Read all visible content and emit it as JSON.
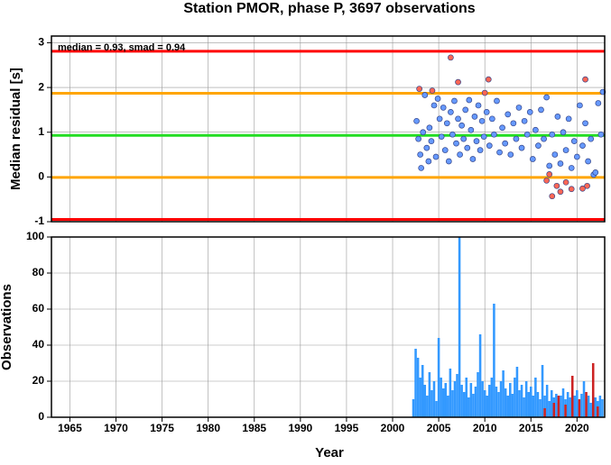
{
  "chart_data": [
    {
      "type": "scatter",
      "title": "Station PMOR, phase P, 3697 observations",
      "ylabel": "Median residual [s]",
      "annotation": "median = 0.93, smad = 0.94",
      "xlim": [
        1963,
        2023
      ],
      "ylim": [
        -1,
        3.15
      ],
      "yticks": [
        -1,
        0,
        1,
        2,
        3
      ],
      "grid": true,
      "hlines": [
        {
          "value": 2.81,
          "color": "#ff0000"
        },
        {
          "value": 1.87,
          "color": "#ffa500"
        },
        {
          "value": 0.93,
          "color": "#22dd22"
        },
        {
          "value": -0.01,
          "color": "#ffa500"
        },
        {
          "value": -0.95,
          "color": "#ff0000"
        }
      ],
      "series": [
        {
          "color": "#6699ff",
          "x": [
            2002.6,
            2002.8,
            2003.0,
            2003.1,
            2003.3,
            2003.5,
            2003.7,
            2003.9,
            2004.0,
            2004.2,
            2004.5,
            2004.7,
            2004.9,
            2005.1,
            2005.3,
            2005.5,
            2005.7,
            2005.9,
            2006.1,
            2006.3,
            2006.5,
            2006.7,
            2006.9,
            2007.1,
            2007.3,
            2007.5,
            2007.7,
            2007.9,
            2008.1,
            2008.3,
            2008.5,
            2008.7,
            2008.9,
            2009.1,
            2009.3,
            2009.5,
            2009.7,
            2009.9,
            2010.2,
            2010.5,
            2010.8,
            2011.0,
            2011.3,
            2011.6,
            2011.9,
            2012.2,
            2012.5,
            2012.8,
            2013.1,
            2013.4,
            2013.7,
            2014.0,
            2014.3,
            2014.6,
            2014.9,
            2015.2,
            2015.5,
            2015.8,
            2016.1,
            2016.4,
            2016.7,
            2017.0,
            2017.3,
            2017.6,
            2017.9,
            2018.2,
            2018.5,
            2018.8,
            2019.1,
            2019.4,
            2019.7,
            2020.0,
            2020.3,
            2020.6,
            2020.9,
            2021.2,
            2021.5,
            2021.8,
            2022.0,
            2022.3,
            2022.6,
            2022.8
          ],
          "values": [
            1.25,
            0.85,
            0.5,
            0.2,
            1.0,
            1.83,
            0.65,
            0.35,
            1.1,
            0.8,
            1.6,
            0.45,
            1.75,
            1.3,
            0.9,
            1.55,
            0.6,
            1.2,
            0.35,
            1.45,
            0.95,
            1.7,
            0.75,
            1.3,
            0.5,
            1.15,
            0.85,
            1.5,
            0.65,
            1.72,
            1.05,
            0.4,
            1.35,
            0.8,
            1.6,
            0.6,
            1.25,
            0.9,
            1.45,
            0.7,
            1.3,
            0.95,
            1.7,
            0.55,
            1.1,
            0.75,
            1.4,
            0.5,
            1.2,
            0.85,
            1.55,
            0.65,
            1.25,
            0.95,
            1.45,
            0.4,
            1.05,
            0.7,
            1.5,
            0.85,
            1.78,
            0.25,
            0.95,
            0.5,
            1.35,
            0.3,
            1.0,
            0.6,
            1.3,
            0.2,
            0.8,
            0.45,
            1.6,
            0.7,
            1.2,
            0.35,
            0.85,
            0.05,
            0.1,
            1.65,
            0.95,
            1.9
          ]
        },
        {
          "color": "#ff6655",
          "x": [
            2002.9,
            2004.3,
            2006.3,
            2007.1,
            2010.0,
            2010.4,
            2016.7,
            2017.0,
            2017.3,
            2017.8,
            2018.2,
            2018.8,
            2019.4,
            2020.6,
            2020.9,
            2021.1
          ],
          "values": [
            1.97,
            1.93,
            2.67,
            2.12,
            1.88,
            2.18,
            -0.08,
            0.06,
            -0.43,
            -0.2,
            -0.33,
            -0.12,
            -0.27,
            -0.26,
            2.18,
            -0.2
          ]
        }
      ]
    },
    {
      "type": "bar",
      "ylabel": "Observations",
      "xlabel": "Year",
      "xlim": [
        1963,
        2023
      ],
      "ylim": [
        0,
        100
      ],
      "yticks": [
        0,
        20,
        40,
        60,
        80,
        100
      ],
      "xticks": [
        1965,
        1970,
        1975,
        1980,
        1985,
        1990,
        1995,
        2000,
        2005,
        2010,
        2015,
        2020
      ],
      "grid": true,
      "bar_width": 0.25,
      "series": [
        {
          "color": "#3399ff",
          "x": [
            2002.25,
            2002.5,
            2002.75,
            2003,
            2003.25,
            2003.5,
            2003.75,
            2004,
            2004.25,
            2004.5,
            2004.75,
            2005,
            2005.25,
            2005.5,
            2005.75,
            2006,
            2006.25,
            2006.5,
            2006.75,
            2007,
            2007.25,
            2007.5,
            2007.75,
            2008,
            2008.25,
            2008.5,
            2008.75,
            2009,
            2009.25,
            2009.5,
            2009.75,
            2010,
            2010.25,
            2010.5,
            2010.75,
            2011,
            2011.25,
            2011.5,
            2011.75,
            2012,
            2012.25,
            2012.5,
            2012.75,
            2013,
            2013.25,
            2013.5,
            2013.75,
            2014,
            2014.25,
            2014.5,
            2014.75,
            2015,
            2015.25,
            2015.5,
            2015.75,
            2016,
            2016.25,
            2016.5,
            2016.75,
            2017,
            2017.25,
            2017.5,
            2017.75,
            2018,
            2018.25,
            2018.5,
            2018.75,
            2019,
            2019.25,
            2019.5,
            2019.75,
            2020,
            2020.25,
            2020.5,
            2020.75,
            2021,
            2021.25,
            2021.5,
            2021.75,
            2022,
            2022.25,
            2022.5,
            2022.75
          ],
          "values": [
            10,
            38,
            33,
            22,
            29,
            18,
            12,
            25,
            15,
            20,
            9,
            44,
            22,
            16,
            19,
            12,
            27,
            15,
            20,
            24,
            100,
            18,
            14,
            22,
            11,
            19,
            13,
            17,
            25,
            46,
            20,
            15,
            12,
            18,
            22,
            63,
            17,
            14,
            20,
            26,
            16,
            12,
            19,
            13,
            22,
            28,
            15,
            18,
            11,
            20,
            14,
            17,
            12,
            22,
            14,
            10,
            29,
            12,
            18,
            9,
            15,
            11,
            13,
            8,
            12,
            16,
            10,
            14,
            11,
            8,
            12,
            15,
            9,
            13,
            20,
            10,
            12,
            8,
            14,
            11,
            9,
            12,
            10
          ]
        },
        {
          "color": "#cc2222",
          "x": [
            2016.5,
            2017.5,
            2018,
            2018.75,
            2019.5,
            2020.25,
            2021,
            2021.75,
            2022.25
          ],
          "values": [
            5,
            8,
            12,
            7,
            23,
            10,
            14,
            30,
            6
          ]
        }
      ]
    }
  ]
}
